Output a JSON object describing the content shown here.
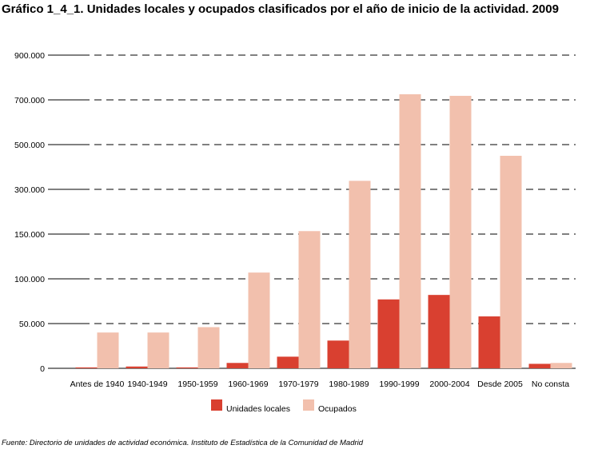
{
  "chart_data": {
    "type": "bar",
    "title": "Gráfico 1_4_1. Unidades locales y ocupados clasificados por el año de inicio de la actividad. 2009",
    "xlabel": "",
    "ylabel": "",
    "y_tick_labels": [
      "0",
      "50.000",
      "100.000",
      "150.000",
      "300.000",
      "500.000",
      "700.000",
      "900.000"
    ],
    "y_scale": "non-linear (equally spaced ticks)",
    "categories": [
      "Antes de 1940",
      "1940-1949",
      "1950-1959",
      "1960-1969",
      "1970-1979",
      "1980-1989",
      "1990-1999",
      "2000-2004",
      "Desde 2005",
      "No consta"
    ],
    "series": [
      {
        "name": "Unidades locales",
        "color": "#d94030",
        "values": [
          1000,
          2000,
          1000,
          6000,
          13000,
          31000,
          77000,
          82000,
          58000,
          5000
        ]
      },
      {
        "name": "Ocupados",
        "color": "#f2c0ad",
        "values": [
          40000,
          40000,
          46000,
          107000,
          160000,
          338000,
          725000,
          718000,
          450000,
          6000
        ]
      }
    ],
    "grid": "horizontal dashed",
    "legend_position": "bottom"
  },
  "source_label": "Fuente:",
  "source_text": "Directorio de unidades de actividad económica. Instituto de Estadística de la Comunidad de Madrid"
}
